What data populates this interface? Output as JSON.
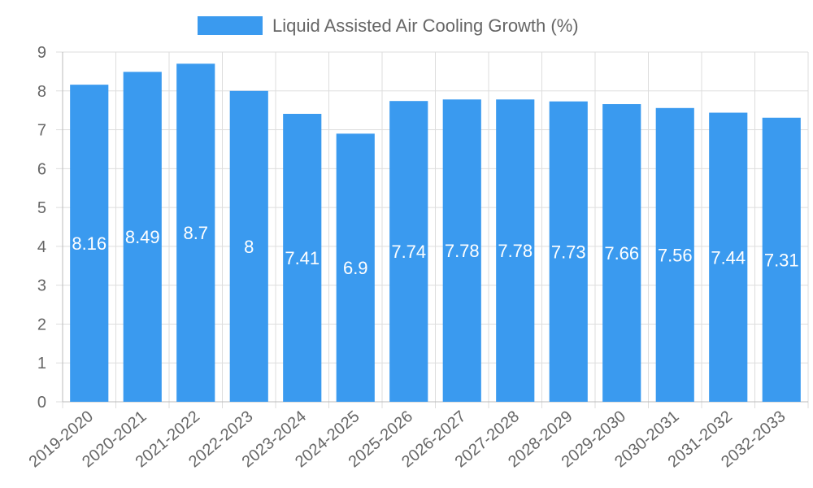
{
  "chart_data": {
    "type": "bar",
    "categories": [
      "2019-2020",
      "2020-2021",
      "2021-2022",
      "2022-2023",
      "2023-2024",
      "2024-2025",
      "2025-2026",
      "2026-2027",
      "2027-2028",
      "2028-2029",
      "2029-2030",
      "2030-2031",
      "2031-2032",
      "2032-2033"
    ],
    "series": [
      {
        "name": "Liquid Assisted Air Cooling Growth (%)",
        "values": [
          8.16,
          8.49,
          8.7,
          8,
          7.41,
          6.9,
          7.74,
          7.78,
          7.78,
          7.73,
          7.66,
          7.56,
          7.44,
          7.31
        ],
        "data_labels": [
          "8.16",
          "8.49",
          "8.7",
          "8",
          "7.41",
          "6.9",
          "7.74",
          "7.78",
          "7.78",
          "7.73",
          "7.66",
          "7.56",
          "7.44",
          "7.31"
        ]
      }
    ],
    "legend_position": "top",
    "title": "",
    "xlabel": "",
    "ylabel": "",
    "ylim": [
      0,
      9
    ],
    "yticks": [
      "0",
      "1",
      "2",
      "3",
      "4",
      "5",
      "6",
      "7",
      "8",
      "9"
    ],
    "grid": true,
    "colors": {
      "bar": "#3a9aef",
      "grid": "#dddddd",
      "text": "#666666",
      "label": "#ffffff"
    }
  }
}
